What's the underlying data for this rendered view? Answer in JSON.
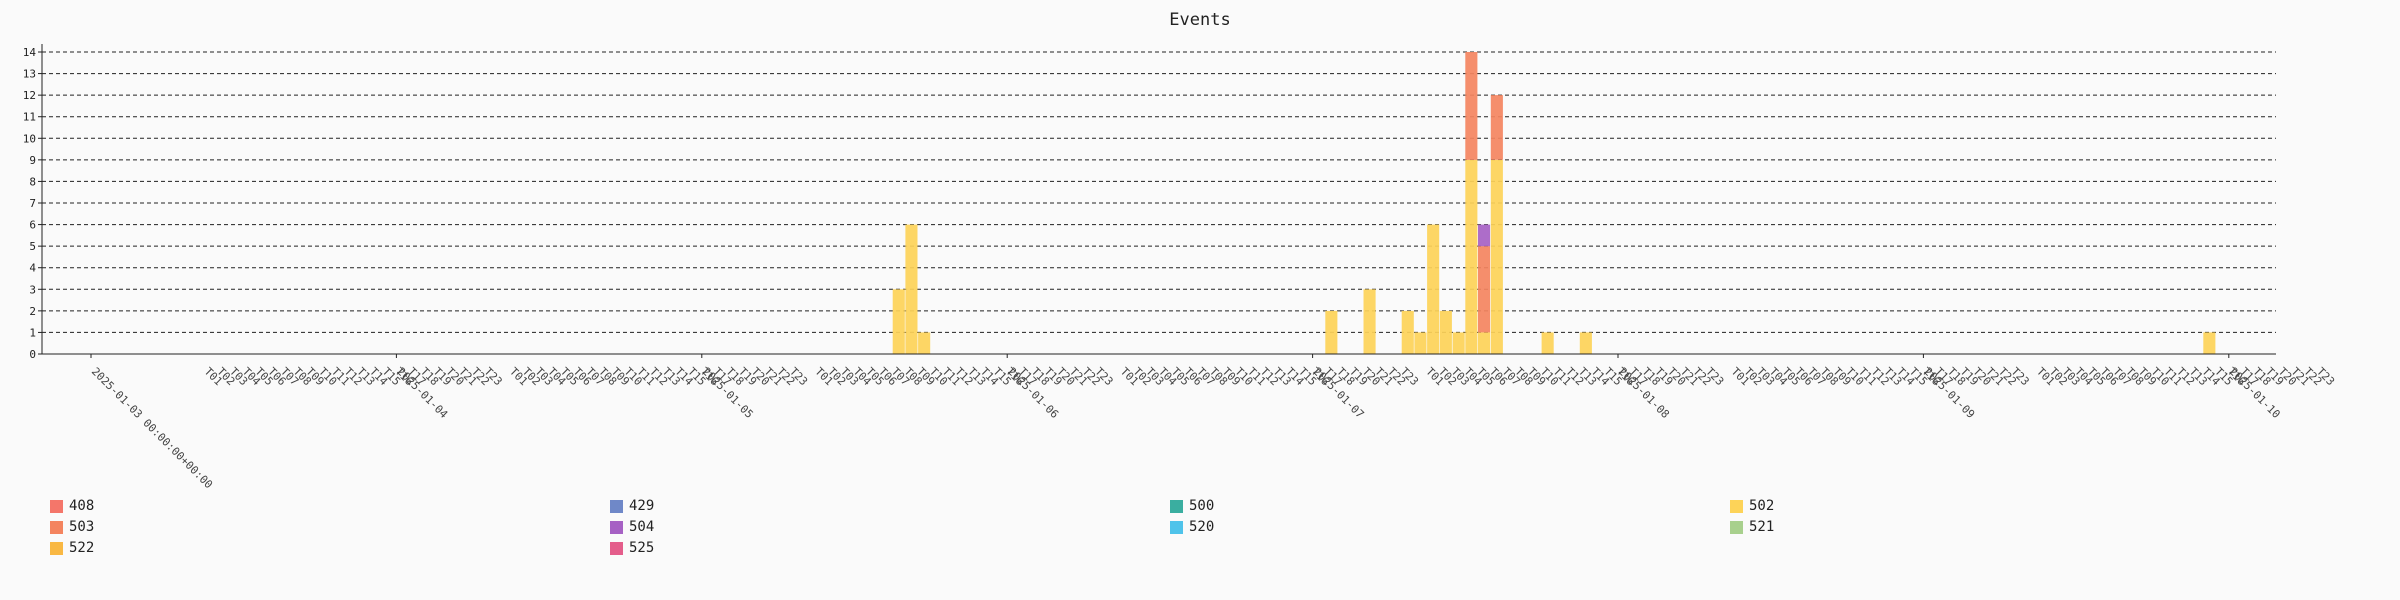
{
  "chart_data": {
    "type": "bar",
    "stacked": true,
    "title": "Events",
    "xlabel": "",
    "ylabel": "",
    "ylim": [
      0,
      14
    ],
    "y_ticks": [
      0,
      1,
      2,
      3,
      4,
      5,
      6,
      7,
      8,
      9,
      10,
      11,
      12,
      13,
      14
    ],
    "grid": true,
    "legend_position": "bottom",
    "x_start": "2025-01-03 00:00:00+00:00",
    "bin": "1h",
    "x_date_ticks": [
      "2025-01-03 00:00:00+00:00",
      "2025-01-04",
      "2025-01-05",
      "2025-01-06",
      "2025-01-07",
      "2025-01-08",
      "2025-01-09",
      "2025-01-10"
    ],
    "hour_tick_labels": [
      "T01",
      "T02",
      "T03",
      "T04",
      "T05",
      "T06",
      "T07",
      "T08",
      "T09",
      "T10",
      "T11",
      "T12",
      "T13",
      "T14",
      "T15",
      "T16",
      "T17",
      "T18",
      "T19",
      "T20",
      "T21",
      "T22",
      "T23"
    ],
    "series": [
      {
        "name": "408",
        "color": "#f4766a",
        "points": []
      },
      {
        "name": "429",
        "color": "#6f88c8",
        "points": []
      },
      {
        "name": "500",
        "color": "#3aaea0",
        "points": []
      },
      {
        "name": "502",
        "color": "#fdd358",
        "points": [
          {
            "x": "2025-01-05T15",
            "value": 3
          },
          {
            "x": "2025-01-05T16",
            "value": 6
          },
          {
            "x": "2025-01-05T17",
            "value": 1
          },
          {
            "x": "2025-01-07T01",
            "value": 2
          },
          {
            "x": "2025-01-07T04",
            "value": 3
          },
          {
            "x": "2025-01-07T07",
            "value": 2
          },
          {
            "x": "2025-01-07T08",
            "value": 1
          },
          {
            "x": "2025-01-07T09",
            "value": 6
          },
          {
            "x": "2025-01-07T10",
            "value": 2
          },
          {
            "x": "2025-01-07T11",
            "value": 1
          },
          {
            "x": "2025-01-07T12",
            "value": 9
          },
          {
            "x": "2025-01-07T13",
            "value": 1
          },
          {
            "x": "2025-01-07T14",
            "value": 9
          },
          {
            "x": "2025-01-07T18",
            "value": 1
          },
          {
            "x": "2025-01-07T21",
            "value": 1
          },
          {
            "x": "2025-01-09T22",
            "value": 1
          }
        ]
      },
      {
        "name": "503",
        "color": "#f4845f",
        "points": [
          {
            "x": "2025-01-07T12",
            "value": 5
          },
          {
            "x": "2025-01-07T13",
            "value": 4
          },
          {
            "x": "2025-01-07T14",
            "value": 3
          }
        ]
      },
      {
        "name": "504",
        "color": "#a661c4",
        "points": [
          {
            "x": "2025-01-07T13",
            "value": 1
          }
        ]
      },
      {
        "name": "520",
        "color": "#4fc3ea",
        "points": []
      },
      {
        "name": "521",
        "color": "#a8d08d",
        "points": []
      },
      {
        "name": "522",
        "color": "#f9b843",
        "points": []
      },
      {
        "name": "525",
        "color": "#e45d8b",
        "points": []
      }
    ]
  },
  "legend": {
    "items": [
      {
        "label": "408",
        "color": "#f4766a"
      },
      {
        "label": "429",
        "color": "#6f88c8"
      },
      {
        "label": "500",
        "color": "#3aaea0"
      },
      {
        "label": "502",
        "color": "#fdd358"
      },
      {
        "label": "503",
        "color": "#f4845f"
      },
      {
        "label": "504",
        "color": "#a661c4"
      },
      {
        "label": "520",
        "color": "#4fc3ea"
      },
      {
        "label": "521",
        "color": "#a8d08d"
      },
      {
        "label": "522",
        "color": "#f9b843"
      },
      {
        "label": "525",
        "color": "#e45d8b"
      }
    ]
  }
}
